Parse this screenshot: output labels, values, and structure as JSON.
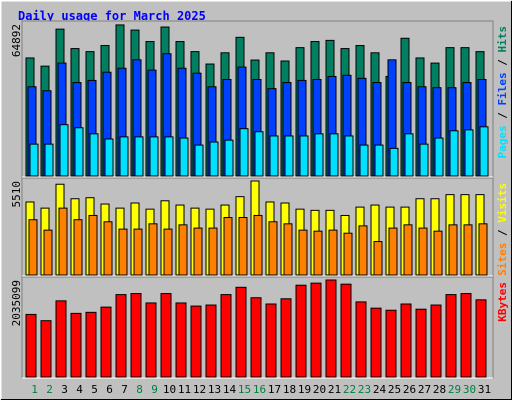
{
  "chart_data": [
    {
      "type": "bar",
      "title": "Daily usage for March 2025",
      "categories": [
        "1",
        "2",
        "3",
        "4",
        "5",
        "6",
        "7",
        "8",
        "9",
        "10",
        "11",
        "12",
        "13",
        "14",
        "15",
        "16",
        "17",
        "18",
        "19",
        "20",
        "21",
        "22",
        "23",
        "24",
        "25",
        "26",
        "27",
        "28",
        "29",
        "30",
        "31"
      ],
      "highlight_categories": [
        "1",
        "2",
        "8",
        "9",
        "15",
        "16",
        "22",
        "23",
        "29",
        "30"
      ],
      "highlight_color": "#008040",
      "legend_separator": " / ",
      "ylim": [
        0,
        64892
      ],
      "yticks": [
        64892
      ],
      "series": [
        {
          "name": "Hits",
          "color": "#008060",
          "values": [
            50400,
            46900,
            62700,
            54400,
            53100,
            55700,
            64500,
            62300,
            57400,
            63600,
            57400,
            53100,
            47800,
            52600,
            59200,
            49500,
            52600,
            49100,
            54800,
            57400,
            57900,
            54400,
            55700,
            52600,
            42500,
            58800,
            50400,
            48200,
            54800,
            54800,
            53100
          ]
        },
        {
          "name": "Files",
          "color": "#0040ff",
          "values": [
            38100,
            36400,
            48200,
            39900,
            40800,
            44300,
            46000,
            49600,
            45200,
            52200,
            46000,
            43900,
            38100,
            41200,
            46500,
            41200,
            37300,
            39900,
            40800,
            41200,
            42500,
            43000,
            41700,
            39900,
            49600,
            39900,
            38100,
            37700,
            37700,
            39900,
            41200
          ]
        },
        {
          "name": "Pages",
          "color": "#00e0ff",
          "values": [
            13600,
            13600,
            21900,
            20600,
            18000,
            15800,
            16700,
            16700,
            16700,
            16700,
            16200,
            13200,
            14500,
            15300,
            20200,
            18900,
            17100,
            17100,
            17100,
            18000,
            18000,
            17100,
            13200,
            13200,
            11800,
            18000,
            13600,
            16200,
            19300,
            19700,
            21000
          ]
        }
      ]
    },
    {
      "type": "bar",
      "ylim": [
        0,
        5510
      ],
      "yticks": [
        5510
      ],
      "series": [
        {
          "name": "Visits",
          "color": "#ffff00",
          "values": [
            4280,
            3920,
            5320,
            4470,
            4530,
            4160,
            3920,
            4220,
            3860,
            4350,
            4100,
            3920,
            3860,
            4100,
            4590,
            5510,
            4280,
            4220,
            3860,
            3790,
            3790,
            3490,
            3980,
            4100,
            3980,
            3980,
            4470,
            4470,
            4710,
            4710,
            4710
          ]
        },
        {
          "name": "Sites",
          "color": "#ff8000",
          "values": [
            3240,
            2630,
            3920,
            3240,
            3490,
            3120,
            2690,
            2690,
            3000,
            2690,
            2940,
            2750,
            2750,
            3370,
            3370,
            3490,
            3120,
            3000,
            2630,
            2570,
            2630,
            2450,
            2880,
            1960,
            2750,
            2940,
            2750,
            2570,
            2940,
            2940,
            3000
          ]
        }
      ]
    },
    {
      "type": "bar",
      "ylim": [
        0,
        2035099
      ],
      "yticks": [
        2035099
      ],
      "series": [
        {
          "name": "KBytes",
          "color": "#ff0000",
          "values": [
            1313000,
            1181700,
            1597500,
            1334900,
            1356700,
            1466200,
            1728800,
            1750600,
            1553700,
            1750600,
            1553700,
            1488000,
            1509900,
            1728800,
            1881900,
            1663100,
            1531800,
            1641200,
            1925700,
            1969500,
            2035099,
            1947600,
            1575600,
            1444300,
            1400500,
            1531800,
            1422400,
            1509900,
            1728800,
            1750600,
            1619300
          ]
        }
      ]
    }
  ]
}
